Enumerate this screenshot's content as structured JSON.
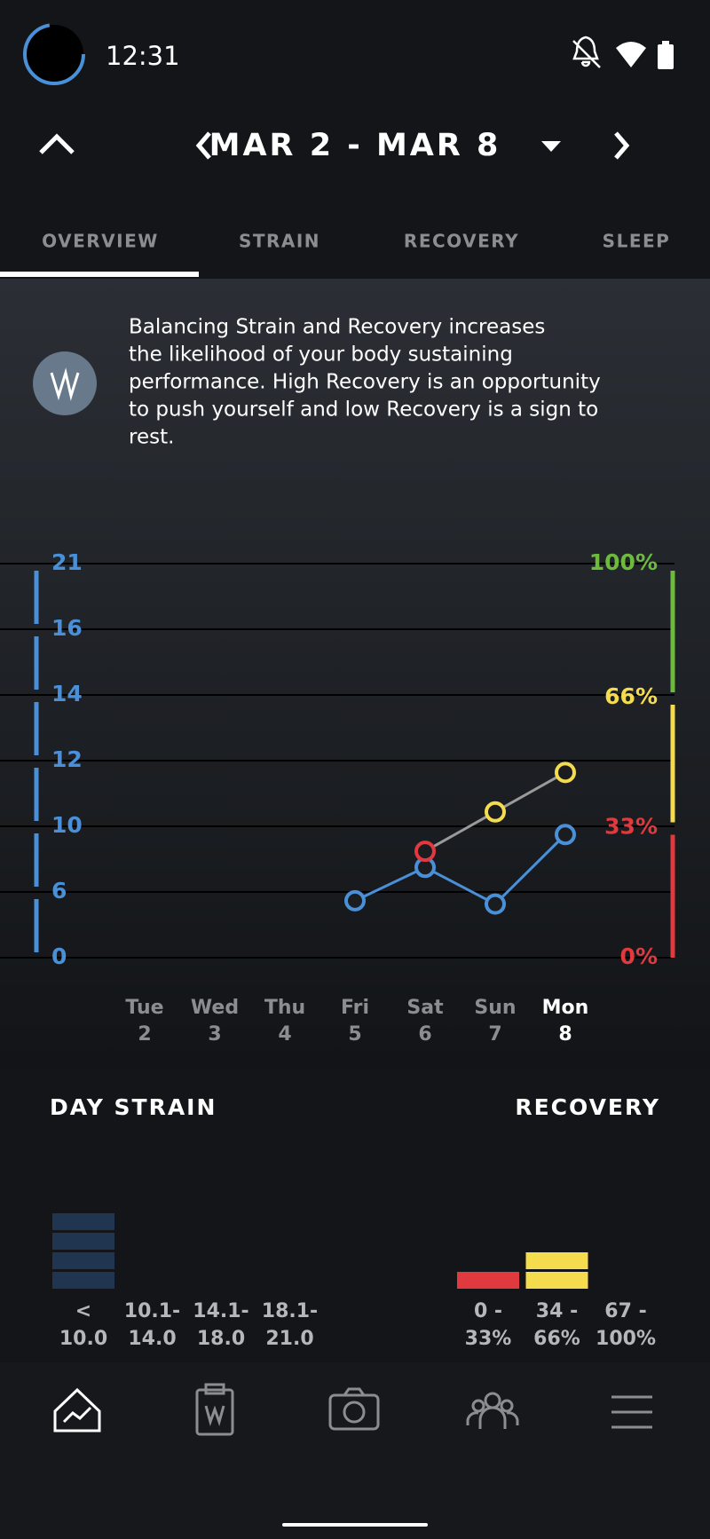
{
  "status_bar": {
    "time": "12:31"
  },
  "header": {
    "date_range": "MAR 2 - MAR 8"
  },
  "tabs": [
    "OVERVIEW",
    "STRAIN",
    "RECOVERY",
    "SLEEP"
  ],
  "info": {
    "lines": [
      "Balancing Strain and Recovery increases",
      "the likelihood of your body sustaining",
      "performance. High Recovery is an opportunity",
      "to push yourself and low Recovery is a sign to",
      "rest."
    ]
  },
  "chart_data": {
    "type": "line",
    "categories": [
      "Tue",
      "Wed",
      "Thu",
      "Fri",
      "Sat",
      "Sun",
      "Mon"
    ],
    "dates": [
      "2",
      "3",
      "4",
      "5",
      "6",
      "7",
      "8"
    ],
    "ylim": [
      0,
      21
    ],
    "yticks": [
      0,
      6,
      10,
      12,
      14,
      16,
      21
    ],
    "y_axis_color": "#4a90d9",
    "y2lim": [
      0,
      100
    ],
    "y2ticks": [
      {
        "value": 0,
        "label": "0%"
      },
      {
        "value": 33,
        "label": "33%"
      },
      {
        "value": 66,
        "label": "66%"
      },
      {
        "value": 100,
        "label": "100%"
      }
    ],
    "y2_zone_colors": [
      "#e0393e",
      "#f5dc4e",
      "#6dbb3c"
    ],
    "grid": true,
    "series": [
      {
        "color": "#4a90d9",
        "values": [
          null,
          null,
          null,
          5.2,
          7.5,
          4.9,
          9.5
        ]
      },
      {
        "axis": "y2",
        "color": "#9a9a9a",
        "point_colors": [
          null,
          null,
          null,
          null,
          "#e0393e",
          "#f5dc4e",
          "#f5dc4e"
        ],
        "values": [
          null,
          null,
          null,
          null,
          27,
          37,
          47
        ]
      }
    ]
  },
  "strain_distribution": {
    "title": "DAY STRAIN",
    "color": "#1f3550",
    "labels": [
      [
        "<",
        "10.0"
      ],
      [
        "10.1-",
        "14.0"
      ],
      [
        "14.1-",
        "18.0"
      ],
      [
        "18.1-",
        "21.0"
      ]
    ],
    "counts": [
      4,
      0,
      0,
      0
    ]
  },
  "recovery_distribution": {
    "title": "RECOVERY",
    "colors": [
      "#e0393e",
      "#f5dc4e",
      "#6dbb3c"
    ],
    "labels": [
      [
        "0 -",
        "33%"
      ],
      [
        "34 -",
        "66%"
      ],
      [
        "67 -",
        "100%"
      ]
    ],
    "counts": [
      1,
      2,
      0
    ]
  }
}
